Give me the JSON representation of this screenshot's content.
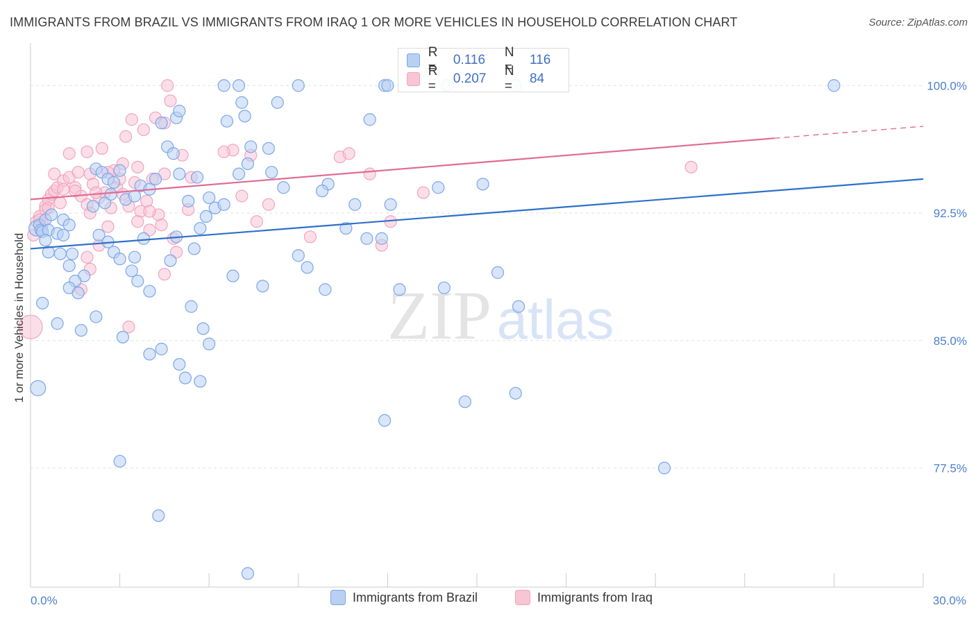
{
  "title": "IMMIGRANTS FROM BRAZIL VS IMMIGRANTS FROM IRAQ 1 OR MORE VEHICLES IN HOUSEHOLD CORRELATION CHART",
  "source": "Source: ZipAtlas.com",
  "watermark": {
    "zip": "ZIP",
    "atlas": "atlas"
  },
  "legend_stats": [
    {
      "r_label": "R =",
      "r": "0.116",
      "n_label": "N =",
      "n": "116"
    },
    {
      "r_label": "R =",
      "r": "0.207",
      "n_label": "N =",
      "n": "84"
    }
  ],
  "chart_data": {
    "type": "scatter",
    "title": "IMMIGRANTS FROM BRAZIL VS IMMIGRANTS FROM IRAQ 1 OR MORE VEHICLES IN HOUSEHOLD CORRELATION CHART",
    "xlabel": "",
    "ylabel": "1 or more Vehicles in Household",
    "xlim": [
      0,
      30
    ],
    "ylim": [
      70.5,
      102.5
    ],
    "x_tick_labels": [
      "0.0%",
      "30.0%"
    ],
    "y_ticks": [
      77.5,
      85.0,
      92.5,
      100.0
    ],
    "y_tick_labels": [
      "77.5%",
      "85.0%",
      "92.5%",
      "100.0%"
    ],
    "grid": true,
    "legend_position": "bottom",
    "colors": {
      "brazil": "#7aa7e8",
      "iraq": "#f3a3bd",
      "brazil_line": "#2f6fc8",
      "iraq_line": "#e06b93",
      "tick_label": "#4a7fd0"
    },
    "series": [
      {
        "name": "Immigrants from Brazil",
        "key": "brazil",
        "trend": {
          "x": [
            0,
            30
          ],
          "y": [
            90.4,
            94.5
          ]
        },
        "points": [
          [
            0.2,
            91.6
          ],
          [
            0.3,
            91.8
          ],
          [
            0.35,
            91.5
          ],
          [
            0.4,
            91.4
          ],
          [
            0.5,
            92.1
          ],
          [
            0.6,
            91.5
          ],
          [
            0.7,
            92.4
          ],
          [
            0.9,
            91.3
          ],
          [
            1.1,
            92.1
          ],
          [
            1.3,
            91.8
          ],
          [
            0.5,
            90.9
          ],
          [
            0.6,
            90.2
          ],
          [
            1.1,
            91.2
          ],
          [
            1.0,
            90.1
          ],
          [
            1.3,
            89.4
          ],
          [
            1.4,
            90.1
          ],
          [
            1.8,
            88.8
          ],
          [
            1.5,
            88.5
          ],
          [
            1.3,
            88.1
          ],
          [
            1.6,
            87.8
          ],
          [
            0.4,
            87.2
          ],
          [
            0.9,
            86.0
          ],
          [
            1.7,
            85.6
          ],
          [
            2.2,
            86.4
          ],
          [
            0.25,
            82.2
          ],
          [
            2.2,
            95.1
          ],
          [
            2.4,
            94.9
          ],
          [
            2.6,
            94.5
          ],
          [
            2.8,
            94.3
          ],
          [
            3.0,
            95.0
          ],
          [
            2.1,
            92.9
          ],
          [
            2.5,
            93.1
          ],
          [
            2.7,
            93.6
          ],
          [
            3.2,
            93.3
          ],
          [
            3.5,
            93.5
          ],
          [
            3.7,
            94.1
          ],
          [
            4.0,
            93.9
          ],
          [
            2.3,
            91.2
          ],
          [
            2.6,
            90.8
          ],
          [
            2.8,
            90.2
          ],
          [
            3.0,
            89.8
          ],
          [
            3.4,
            89.1
          ],
          [
            3.5,
            89.9
          ],
          [
            3.6,
            88.5
          ],
          [
            4.0,
            87.9
          ],
          [
            4.4,
            97.8
          ],
          [
            4.6,
            96.4
          ],
          [
            4.8,
            96.0
          ],
          [
            5.0,
            94.8
          ],
          [
            5.3,
            93.2
          ],
          [
            5.6,
            94.6
          ],
          [
            6.0,
            93.4
          ],
          [
            6.2,
            92.8
          ],
          [
            6.5,
            93.0
          ],
          [
            7.0,
            94.8
          ],
          [
            7.3,
            95.4
          ],
          [
            5.9,
            92.3
          ],
          [
            5.7,
            91.6
          ],
          [
            4.9,
            91.1
          ],
          [
            3.8,
            91.0
          ],
          [
            3.1,
            85.2
          ],
          [
            4.0,
            84.2
          ],
          [
            4.4,
            84.5
          ],
          [
            5.0,
            83.6
          ],
          [
            5.2,
            82.8
          ],
          [
            5.7,
            82.6
          ],
          [
            5.4,
            87.0
          ],
          [
            5.8,
            85.7
          ],
          [
            6.0,
            84.8
          ],
          [
            6.8,
            88.8
          ],
          [
            3.0,
            77.9
          ],
          [
            4.3,
            74.7
          ],
          [
            7.3,
            71.3
          ],
          [
            6.5,
            100.0
          ],
          [
            7.0,
            100.0
          ],
          [
            9.0,
            100.0
          ],
          [
            11.9,
            100.0
          ],
          [
            12.0,
            100.0
          ],
          [
            14.0,
            100.0
          ],
          [
            16.3,
            100.0
          ],
          [
            27.0,
            100.0
          ],
          [
            7.1,
            99.0
          ],
          [
            8.3,
            99.0
          ],
          [
            7.2,
            98.2
          ],
          [
            6.6,
            97.9
          ],
          [
            11.4,
            98.0
          ],
          [
            4.9,
            98.1
          ],
          [
            5.0,
            98.5
          ],
          [
            7.4,
            96.4
          ],
          [
            8.0,
            96.3
          ],
          [
            8.1,
            94.9
          ],
          [
            10.0,
            94.2
          ],
          [
            10.9,
            93.0
          ],
          [
            12.1,
            93.0
          ],
          [
            13.7,
            94.0
          ],
          [
            15.2,
            94.2
          ],
          [
            9.0,
            90.0
          ],
          [
            7.8,
            88.2
          ],
          [
            9.3,
            89.3
          ],
          [
            9.9,
            88.0
          ],
          [
            10.6,
            91.6
          ],
          [
            11.3,
            91.0
          ],
          [
            11.8,
            91.0
          ],
          [
            13.9,
            88.1
          ],
          [
            14.6,
            81.4
          ],
          [
            15.7,
            89.0
          ],
          [
            16.3,
            81.9
          ],
          [
            16.4,
            87.0
          ],
          [
            11.9,
            80.3
          ],
          [
            21.3,
            77.5
          ],
          [
            4.7,
            89.7
          ],
          [
            5.5,
            90.4
          ],
          [
            4.2,
            94.5
          ],
          [
            9.8,
            93.8
          ],
          [
            8.5,
            94.0
          ],
          [
            12.4,
            88.0
          ]
        ]
      },
      {
        "name": "Immigrants from Iraq",
        "key": "iraq",
        "trend": {
          "x": [
            0,
            25.0
          ],
          "y": [
            93.3,
            96.9
          ]
        },
        "trend_dashed": {
          "x": [
            25.0,
            30
          ],
          "y": [
            96.9,
            97.6
          ]
        },
        "points": [
          [
            0.0,
            85.8
          ],
          [
            0.2,
            92.0
          ],
          [
            0.3,
            92.3
          ],
          [
            0.4,
            91.9
          ],
          [
            0.5,
            92.9
          ],
          [
            0.6,
            93.3
          ],
          [
            0.7,
            93.6
          ],
          [
            0.8,
            93.8
          ],
          [
            0.9,
            94.0
          ],
          [
            1.0,
            93.1
          ],
          [
            0.8,
            94.8
          ],
          [
            1.1,
            94.4
          ],
          [
            1.3,
            94.6
          ],
          [
            1.5,
            94.0
          ],
          [
            1.7,
            93.5
          ],
          [
            1.9,
            93.0
          ],
          [
            2.0,
            94.8
          ],
          [
            2.1,
            94.2
          ],
          [
            2.3,
            93.4
          ],
          [
            2.5,
            93.7
          ],
          [
            2.7,
            92.8
          ],
          [
            2.9,
            94.0
          ],
          [
            3.1,
            93.6
          ],
          [
            3.3,
            92.9
          ],
          [
            3.5,
            94.3
          ],
          [
            3.7,
            92.6
          ],
          [
            3.9,
            93.2
          ],
          [
            4.1,
            94.5
          ],
          [
            4.3,
            92.4
          ],
          [
            4.5,
            94.8
          ],
          [
            1.3,
            96.0
          ],
          [
            1.9,
            96.1
          ],
          [
            2.4,
            96.3
          ],
          [
            3.2,
            97.0
          ],
          [
            3.4,
            98.0
          ],
          [
            3.8,
            97.4
          ],
          [
            4.2,
            98.1
          ],
          [
            4.5,
            97.8
          ],
          [
            4.7,
            99.1
          ],
          [
            4.6,
            100.0
          ],
          [
            3.6,
            95.2
          ],
          [
            3.1,
            95.4
          ],
          [
            2.8,
            95.0
          ],
          [
            5.1,
            95.9
          ],
          [
            5.4,
            94.6
          ],
          [
            7.1,
            93.5
          ],
          [
            6.8,
            96.2
          ],
          [
            7.4,
            95.9
          ],
          [
            7.6,
            92.0
          ],
          [
            8.0,
            93.0
          ],
          [
            10.4,
            95.8
          ],
          [
            10.7,
            96.0
          ],
          [
            11.4,
            94.8
          ],
          [
            13.2,
            93.7
          ],
          [
            11.8,
            90.6
          ],
          [
            12.1,
            92.0
          ],
          [
            9.4,
            91.1
          ],
          [
            4.4,
            91.8
          ],
          [
            4.0,
            92.6
          ],
          [
            4.9,
            90.2
          ],
          [
            4.5,
            88.9
          ],
          [
            2.0,
            89.2
          ],
          [
            1.7,
            88.0
          ],
          [
            2.6,
            91.7
          ],
          [
            3.3,
            85.8
          ],
          [
            1.9,
            89.9
          ],
          [
            2.2,
            93.7
          ],
          [
            0.5,
            92.7
          ],
          [
            1.1,
            93.9
          ],
          [
            22.2,
            95.2
          ],
          [
            6.5,
            96.1
          ],
          [
            4.0,
            91.5
          ],
          [
            2.3,
            90.6
          ],
          [
            0.3,
            92.1
          ],
          [
            0.6,
            92.8
          ],
          [
            1.5,
            93.8
          ],
          [
            1.6,
            94.9
          ],
          [
            5.3,
            92.7
          ],
          [
            2.6,
            94.9
          ],
          [
            3.0,
            94.5
          ],
          [
            3.6,
            92.0
          ],
          [
            2.0,
            92.5
          ],
          [
            4.8,
            91.0
          ],
          [
            0.1,
            91.2
          ]
        ]
      }
    ]
  },
  "legend_bottom": [
    {
      "label": "Immigrants from Brazil"
    },
    {
      "label": "Immigrants from Iraq"
    }
  ]
}
